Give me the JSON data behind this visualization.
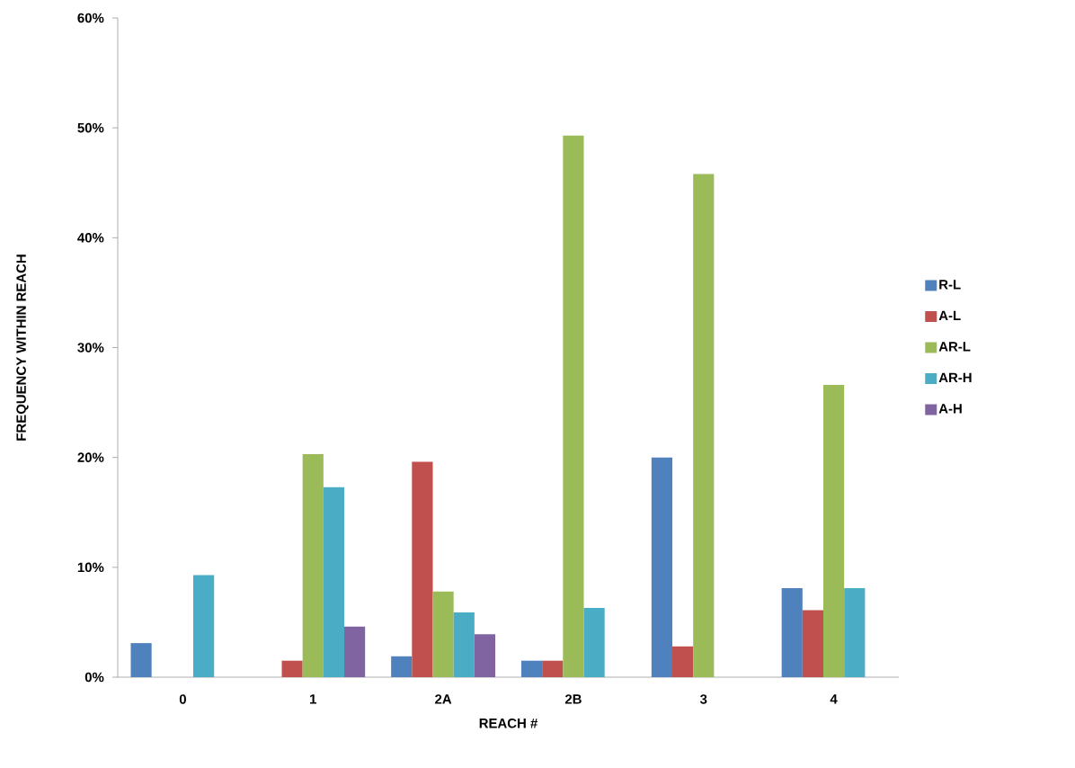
{
  "chart_data": {
    "type": "bar",
    "xlabel": "REACH #",
    "ylabel": "FREQUENCY WITHIN REACH",
    "categories": [
      "0",
      "1",
      "2A",
      "2B",
      "3",
      "4"
    ],
    "series": [
      {
        "name": "R-L",
        "color": "#4f81bd",
        "values": [
          3.1,
          null,
          1.9,
          1.5,
          20.0,
          8.1
        ]
      },
      {
        "name": "A-L",
        "color": "#c0504d",
        "values": [
          null,
          1.5,
          19.6,
          1.5,
          2.8,
          6.1
        ]
      },
      {
        "name": "AR-L",
        "color": "#9bbb59",
        "values": [
          null,
          20.3,
          7.8,
          49.3,
          45.8,
          26.6
        ]
      },
      {
        "name": "AR-H",
        "color": "#4bacc6",
        "values": [
          9.3,
          17.3,
          5.9,
          6.3,
          null,
          8.1
        ]
      },
      {
        "name": "A-H",
        "color": "#8064a2",
        "values": [
          null,
          4.6,
          3.9,
          null,
          null,
          null
        ]
      }
    ],
    "ylim": [
      0,
      60
    ],
    "yticks": [
      {
        "value": 0,
        "label": "0%"
      },
      {
        "value": 10,
        "label": "10%"
      },
      {
        "value": 20,
        "label": "20%"
      },
      {
        "value": 30,
        "label": "30%"
      },
      {
        "value": 40,
        "label": "40%"
      },
      {
        "value": 50,
        "label": "50%"
      },
      {
        "value": 60,
        "label": "60%"
      }
    ],
    "grid": false,
    "legend": "right"
  }
}
